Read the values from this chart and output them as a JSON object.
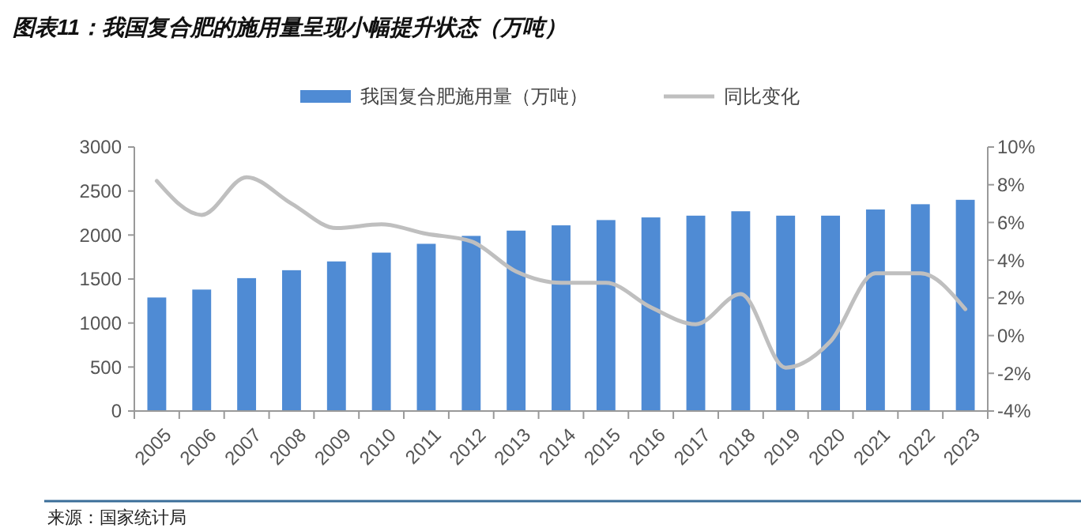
{
  "chart_data": {
    "type": "bar",
    "title": "图表11：我国复合肥的施用量呈现小幅提升状态（万吨）",
    "categories": [
      "2005",
      "2006",
      "2007",
      "2008",
      "2009",
      "2010",
      "2011",
      "2012",
      "2013",
      "2014",
      "2015",
      "2016",
      "2017",
      "2018",
      "2019",
      "2020",
      "2021",
      "2022",
      "2023"
    ],
    "series": [
      {
        "name": "我国复合肥施用量（万吨）",
        "color": "#4f8bd4",
        "values": [
          1290,
          1380,
          1510,
          1600,
          1700,
          1800,
          1900,
          1990,
          2050,
          2110,
          2170,
          2200,
          2220,
          2270,
          2220,
          2220,
          2290,
          2350,
          2400
        ]
      },
      {
        "name": "同比变化",
        "type": "line",
        "axis": "y2",
        "color": "#bfbfbf",
        "values": [
          8.2,
          6.4,
          8.4,
          7.0,
          5.7,
          5.9,
          5.4,
          5.0,
          3.4,
          2.8,
          2.8,
          1.5,
          0.6,
          2.2,
          -1.7,
          -0.3,
          3.3,
          3.3,
          1.4
        ]
      }
    ],
    "ylim": [
      0,
      3000
    ],
    "yticks": [
      0,
      500,
      1000,
      1500,
      2000,
      2500,
      3000
    ],
    "y2lim": [
      -4,
      10
    ],
    "y2ticks": [
      {
        "value": -4,
        "label": "-4%"
      },
      {
        "value": -2,
        "label": "-2%"
      },
      {
        "value": 0,
        "label": "0%"
      },
      {
        "value": 2,
        "label": "2%"
      },
      {
        "value": 4,
        "label": "4%"
      },
      {
        "value": 6,
        "label": "6%"
      },
      {
        "value": 8,
        "label": "8%"
      },
      {
        "value": 10,
        "label": "10%"
      }
    ],
    "legend": "top",
    "grid": false,
    "annotations": [
      "来源：国家统计局"
    ]
  }
}
